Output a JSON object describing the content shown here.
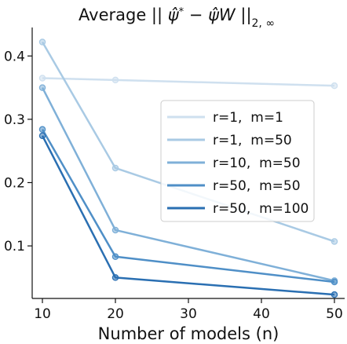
{
  "chart_data": {
    "type": "line",
    "title": "Average || ψ̂* − ψ̂W ||2,∞",
    "title_parts": {
      "prefix": "Average || ",
      "psi_hat_star": "ψ̂",
      "star": "*",
      "minus": " − ",
      "psi_hat": "ψ̂",
      "w": "W",
      "suffix": " ||",
      "subscript": "2, ∞"
    },
    "xlabel": "Number of models (n)",
    "ylabel": "",
    "x": [
      10,
      20,
      50
    ],
    "xlim": [
      8.6,
      51.4
    ],
    "ylim": [
      0.017,
      0.445
    ],
    "xticks": [
      10,
      20,
      30,
      40,
      50
    ],
    "xtick_labels": [
      "10",
      "20",
      "30",
      "40",
      "50"
    ],
    "yticks": [
      0.1,
      0.2,
      0.3,
      0.4
    ],
    "ytick_labels": [
      "0.1",
      "0.2",
      "0.3",
      "0.4"
    ],
    "grid": false,
    "legend_position": "right",
    "series": [
      {
        "name": "r=1,  m=1",
        "values": [
          0.365,
          0.362,
          0.353
        ],
        "color": "#cfe0ef"
      },
      {
        "name": "r=1,  m=50",
        "values": [
          0.422,
          0.223,
          0.107
        ],
        "color": "#a9cae4"
      },
      {
        "name": "r=10,  m=50",
        "values": [
          0.35,
          0.125,
          0.045
        ],
        "color": "#7fb0d8"
      },
      {
        "name": "r=50,  m=50",
        "values": [
          0.284,
          0.083,
          0.043
        ],
        "color": "#4f8fc7"
      },
      {
        "name": "r=50,  m=100",
        "values": [
          0.274,
          0.05,
          0.023
        ],
        "color": "#2a6fb2"
      }
    ]
  }
}
